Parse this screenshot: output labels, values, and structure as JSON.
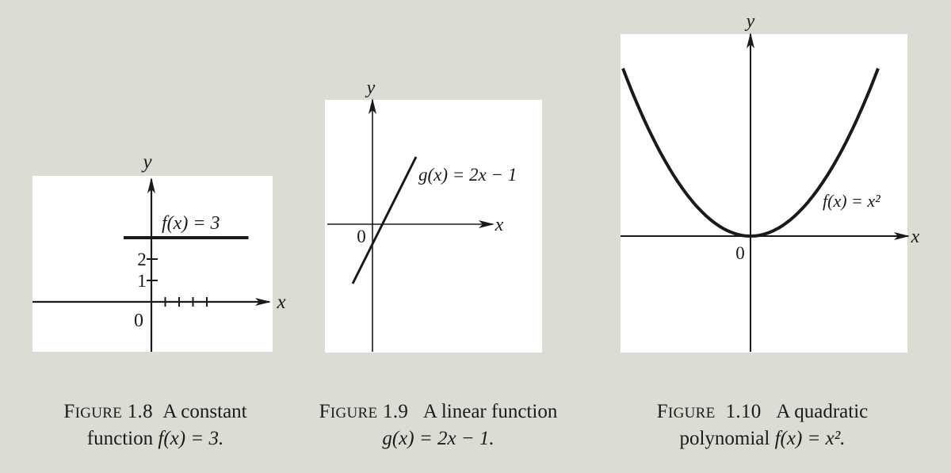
{
  "chart_data": [
    {
      "type": "line",
      "function": "f(x) = 3",
      "series": [
        {
          "name": "f(x) = 3",
          "points": [
            [
              -2,
              3
            ],
            [
              7,
              3
            ]
          ]
        }
      ],
      "axes": {
        "x_label": "x",
        "y_label": "y",
        "origin_label": "0"
      },
      "y_ticks": [
        "1",
        "2"
      ],
      "x_ticks": [
        1,
        2,
        3,
        4
      ],
      "caption": {
        "label_first": "F",
        "label_rest": "IGURE",
        "label_num": "1.8",
        "text": "A constant",
        "line2_prefix": "function ",
        "line2_formula": "f(x) = 3."
      }
    },
    {
      "type": "line",
      "function": "g(x) = 2x − 1",
      "series": [
        {
          "name": "g(x) = 2x − 1",
          "points": [
            [
              -1.0,
              -3.0
            ],
            [
              2.2,
              3.4
            ]
          ]
        }
      ],
      "axes": {
        "x_label": "x",
        "y_label": "y",
        "origin_label": "0"
      },
      "caption": {
        "label_first": "F",
        "label_rest": "IGURE",
        "label_num": "1.9",
        "text": "A linear function",
        "line2_formula": "g(x) = 2x − 1."
      }
    },
    {
      "type": "line",
      "function": "f(x) = x²",
      "series": [
        {
          "name": "f(x) = x²",
          "x_range": [
            -2.3,
            2.3
          ]
        }
      ],
      "axes": {
        "x_label": "x",
        "y_label": "y",
        "origin_label": "0"
      },
      "caption": {
        "label_first": "F",
        "label_rest": "IGURE",
        "label_num": "1.10",
        "text": "A quadratic",
        "line2_prefix": "polynomial ",
        "line2_formula": "f(x) = x²."
      }
    }
  ]
}
